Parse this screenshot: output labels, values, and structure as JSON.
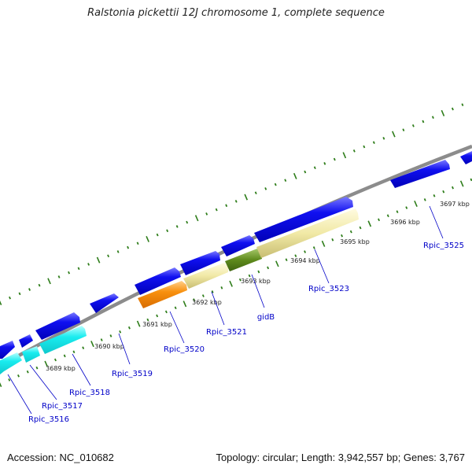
{
  "title": "Ralstonia pickettii 12J chromosome 1, complete sequence",
  "footer": {
    "accession": "Accession: NC_010682",
    "topology": "Topology: circular; Length: 3,942,557 bp; Genes: 3,767"
  },
  "colors": {
    "backbone": "#8c8c8c",
    "cds_forward": "#0a0ae6",
    "cds_reverse_cyan": "#19ecef",
    "cds_orange": "#f8900e",
    "cds_pale": "#f1e9a6",
    "cds_olive": "#5e8a1c",
    "tick_marks": "#2e7d1a",
    "gene_label": "#0000c8"
  },
  "ticks": [
    {
      "label": "3689 kbp"
    },
    {
      "label": "3690 kbp"
    },
    {
      "label": "3691 kbp"
    },
    {
      "label": "3692 kbp"
    },
    {
      "label": "3693 kbp"
    },
    {
      "label": "3694 kbp"
    },
    {
      "label": "3695 kbp"
    },
    {
      "label": "3696 kbp"
    },
    {
      "label": "3697 kbp"
    }
  ],
  "genes": [
    {
      "label": "Rpic_3516"
    },
    {
      "label": "Rpic_3517"
    },
    {
      "label": "Rpic_3518"
    },
    {
      "label": "Rpic_3519"
    },
    {
      "label": "Rpic_3520"
    },
    {
      "label": "Rpic_3521"
    },
    {
      "label": "gidB"
    },
    {
      "label": "Rpic_3523"
    },
    {
      "label": "Rpic_3525"
    }
  ]
}
